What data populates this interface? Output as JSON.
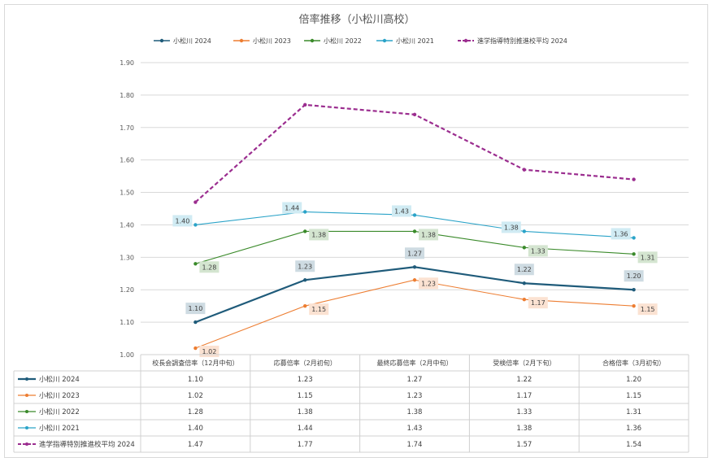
{
  "chart_data": {
    "type": "line",
    "title": "倍率推移（小松川高校）",
    "categories": [
      "校長会調査倍率（12月中旬）",
      "応募倍率（2月初旬）",
      "最終応募倍率（2月中旬）",
      "受検倍率（2月下旬）",
      "合格倍率（3月初旬）"
    ],
    "ylim": [
      1.0,
      1.9
    ],
    "yticks": [
      "1.00",
      "1.10",
      "1.20",
      "1.30",
      "1.40",
      "1.50",
      "1.60",
      "1.70",
      "1.80",
      "1.90"
    ],
    "grid": true,
    "legend_position": "top",
    "data_table": true,
    "series": [
      {
        "name": "小松川 2024",
        "values": [
          1.1,
          1.23,
          1.27,
          1.22,
          1.2
        ],
        "display": [
          "1.10",
          "1.23",
          "1.27",
          "1.22",
          "1.20"
        ],
        "color": "#1f5b7a",
        "dash": "solid",
        "labels": true,
        "label_style": "above"
      },
      {
        "name": "小松川 2023",
        "values": [
          1.02,
          1.15,
          1.23,
          1.17,
          1.15
        ],
        "display": [
          "1.02",
          "1.15",
          "1.23",
          "1.17",
          "1.15"
        ],
        "color": "#ed7d31",
        "dash": "solid",
        "labels": true,
        "label_style": "right"
      },
      {
        "name": "小松川 2022",
        "values": [
          1.28,
          1.38,
          1.38,
          1.33,
          1.31
        ],
        "display": [
          "1.28",
          "1.38",
          "1.38",
          "1.33",
          "1.31"
        ],
        "color": "#3a8a2a",
        "dash": "solid",
        "labels": true,
        "label_style": "right"
      },
      {
        "name": "小松川 2021",
        "values": [
          1.4,
          1.44,
          1.43,
          1.38,
          1.36
        ],
        "display": [
          "1.40",
          "1.44",
          "1.43",
          "1.38",
          "1.36"
        ],
        "color": "#2aa3c8",
        "dash": "solid",
        "labels": true,
        "label_style": "left"
      },
      {
        "name": "進学指導特別推進校平均 2024",
        "values": [
          1.47,
          1.77,
          1.74,
          1.57,
          1.54
        ],
        "display": [
          "1.47",
          "1.77",
          "1.74",
          "1.57",
          "1.54"
        ],
        "color": "#9b2d8f",
        "dash": "dashed",
        "labels": false,
        "label_style": "none"
      }
    ]
  }
}
